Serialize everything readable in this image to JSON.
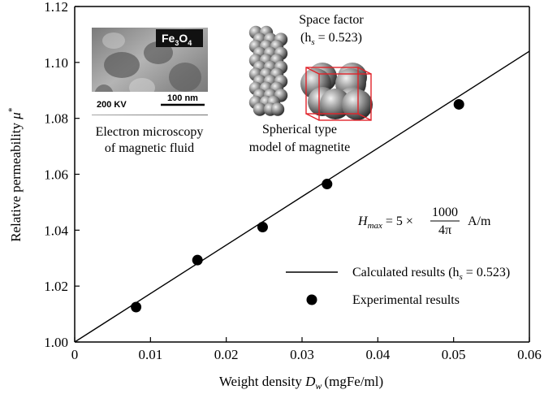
{
  "chart_data": {
    "type": "scatter",
    "xlabel": "Weight density",
    "xlabel_symbol": "D",
    "xlabel_subscript": "w",
    "xlabel_unit": "(mgFe/ml)",
    "ylabel": "Relative permeability",
    "ylabel_symbol": "μ",
    "ylabel_superscript": "*",
    "xlim": [
      0,
      0.06
    ],
    "ylim": [
      1.0,
      1.12
    ],
    "x_ticks": [
      "0",
      "0.01",
      "0.02",
      "0.03",
      "0.04",
      "0.05",
      "0.06"
    ],
    "y_ticks": [
      "1.00",
      "1.02",
      "1.04",
      "1.06",
      "1.08",
      "1.10",
      "1.12"
    ],
    "grid": false,
    "legend_position": "bottom-right",
    "series": [
      {
        "name": "Calculated results",
        "name_suffix": "(h",
        "name_sub": "s",
        "name_value": " = 0.523)",
        "kind": "line",
        "color": "#000000",
        "x": [
          0,
          0.06
        ],
        "y": [
          1.0,
          1.104
        ]
      },
      {
        "name": "Experimental results",
        "kind": "scatter",
        "color": "#000000",
        "x": [
          0.0081,
          0.0162,
          0.0248,
          0.0333,
          0.0507
        ],
        "y": [
          1.0125,
          1.0293,
          1.0411,
          1.0565,
          1.085
        ]
      }
    ],
    "annotations": {
      "tem_caption_line1": "Electron microscopy",
      "tem_caption_line2": "of magnetic fluid",
      "tem_label_fe": "Fe",
      "tem_label_sub3": "3",
      "tem_label_o": "O",
      "tem_label_sub4": "4",
      "tem_voltage": "200 KV",
      "tem_scale": "100 nm",
      "space_factor_line1": "Space factor",
      "space_factor_open": "(h",
      "space_factor_sub": "s",
      "space_factor_value": " = 0.523)",
      "sphere_caption_line1": "Spherical type",
      "sphere_caption_line2": "model of magnetite",
      "hmax_symbol": "H",
      "hmax_sub": "max",
      "hmax_expr": " = 5 ×",
      "hmax_numerator": "1000",
      "hmax_denominator": "4π",
      "hmax_unit": "A/m"
    },
    "colors": {
      "axis": "#000000",
      "cube_edge": "#e0232a",
      "sphere": "#8a8a8a"
    }
  }
}
